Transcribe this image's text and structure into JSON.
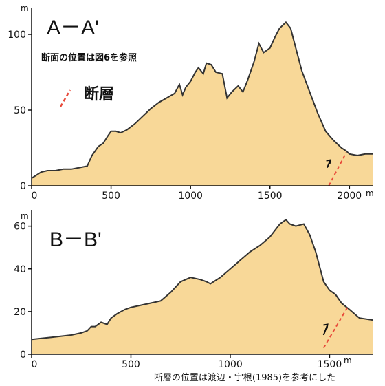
{
  "chart_data": [
    {
      "type": "area",
      "title": "A－A'",
      "note": "断面の位置は図6を参照",
      "legend": {
        "label": "断層"
      },
      "xunit": "m",
      "yunit": "m",
      "xlim": [
        0,
        2150
      ],
      "ylim": [
        0,
        115
      ],
      "xticks": [
        0,
        500,
        1000,
        1500,
        2000
      ],
      "yticks": [
        0,
        50,
        100
      ],
      "fill_color": "#f8d898",
      "line_color": "#333333",
      "fault_color": "#e84a3a",
      "x": [
        0,
        30,
        60,
        100,
        150,
        200,
        250,
        300,
        350,
        380,
        420,
        450,
        480,
        500,
        530,
        560,
        600,
        650,
        700,
        750,
        800,
        850,
        900,
        930,
        950,
        970,
        1000,
        1030,
        1050,
        1080,
        1100,
        1130,
        1160,
        1200,
        1230,
        1260,
        1300,
        1330,
        1360,
        1400,
        1430,
        1460,
        1500,
        1530,
        1560,
        1600,
        1630,
        1660,
        1700,
        1750,
        1800,
        1850,
        1900,
        1950,
        1980,
        2000,
        2050,
        2100,
        2150
      ],
      "y": [
        5,
        7,
        9,
        10,
        10,
        11,
        11,
        12,
        13,
        20,
        26,
        28,
        33,
        36,
        36,
        35,
        37,
        41,
        46,
        51,
        55,
        58,
        61,
        67,
        60,
        65,
        69,
        75,
        78,
        74,
        81,
        80,
        75,
        74,
        58,
        62,
        66,
        62,
        70,
        82,
        94,
        88,
        91,
        98,
        104,
        108,
        104,
        92,
        76,
        62,
        48,
        36,
        30,
        25,
        23,
        21,
        20,
        21,
        21
      ],
      "fault": {
        "x": [
          1870,
          1980
        ],
        "y": [
          0,
          22
        ]
      },
      "arrow": {
        "x": [
          1860,
          1880
        ],
        "y": [
          12,
          17
        ]
      }
    },
    {
      "type": "area",
      "title": "B－B'",
      "xunit": "m",
      "yunit": "m",
      "xlim": [
        0,
        1720
      ],
      "ylim": [
        0,
        66
      ],
      "xticks": [
        0,
        500,
        1000,
        1500
      ],
      "yticks": [
        0,
        20,
        40,
        60
      ],
      "fill_color": "#f8d898",
      "line_color": "#333333",
      "fault_color": "#e84a3a",
      "x": [
        0,
        50,
        100,
        150,
        200,
        250,
        280,
        300,
        320,
        350,
        380,
        400,
        430,
        470,
        500,
        550,
        600,
        650,
        700,
        750,
        800,
        850,
        880,
        900,
        950,
        1000,
        1050,
        1100,
        1150,
        1200,
        1250,
        1280,
        1300,
        1330,
        1370,
        1400,
        1430,
        1470,
        1500,
        1530,
        1560,
        1600,
        1650,
        1720
      ],
      "y": [
        7,
        7.5,
        8,
        8.5,
        9,
        10,
        11,
        13,
        13,
        15,
        14,
        17,
        19,
        21,
        22,
        23,
        24,
        25,
        29,
        34,
        36,
        35,
        34,
        33,
        36,
        40,
        44,
        48,
        51,
        55,
        61,
        63,
        61,
        60,
        61,
        56,
        48,
        34,
        30,
        28,
        24,
        21,
        17,
        16
      ],
      "fault": {
        "x": [
          1470,
          1590
        ],
        "y": [
          3,
          22
        ]
      },
      "arrow": {
        "x": [
          1470,
          1490
        ],
        "y": [
          9,
          14
        ]
      }
    }
  ],
  "caption": "断層の位置は渡辺・宇根(1985)を参考にした"
}
